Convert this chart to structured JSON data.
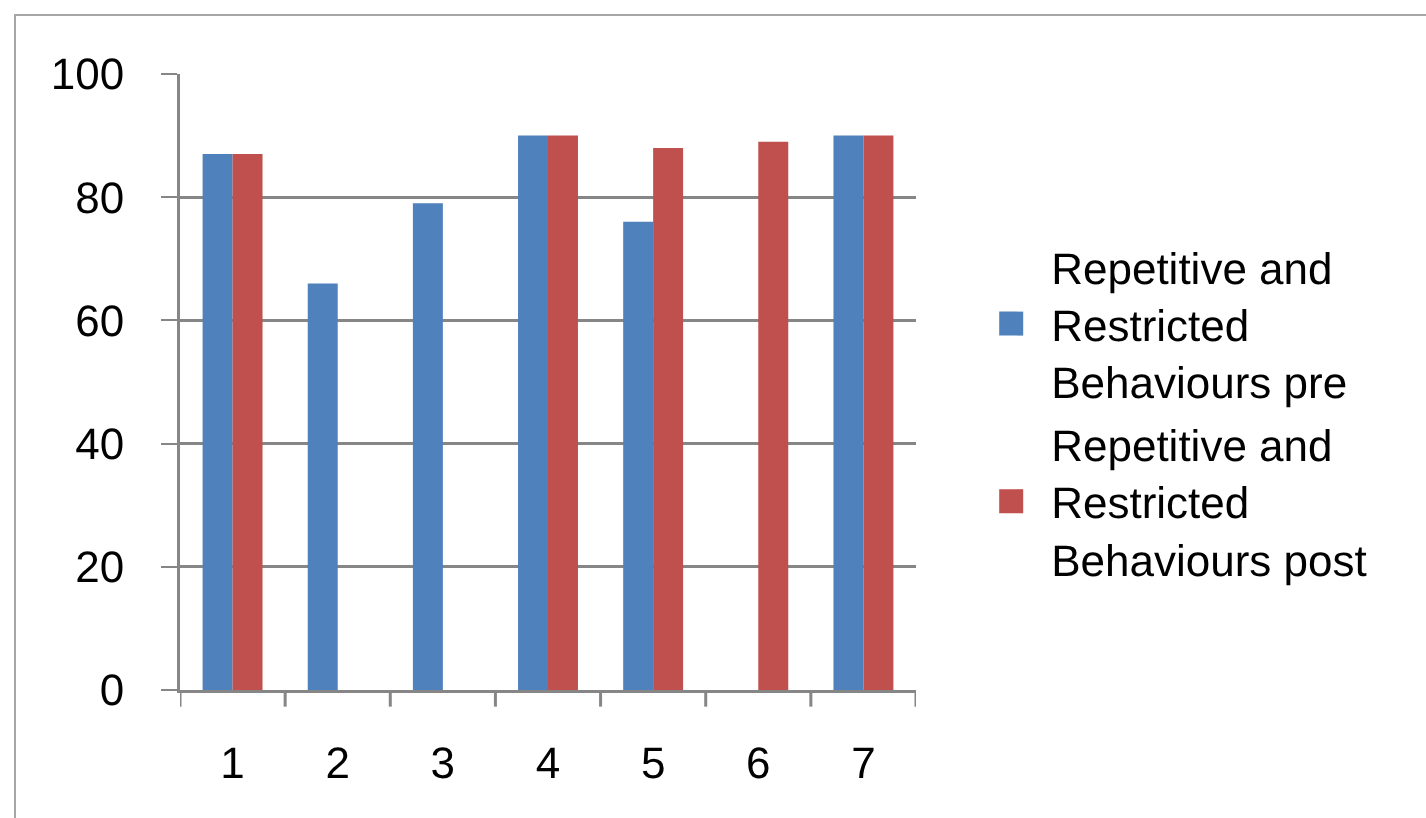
{
  "chart_data": {
    "type": "bar",
    "categories": [
      "1",
      "2",
      "3",
      "4",
      "5",
      "6",
      "7"
    ],
    "series": [
      {
        "name": "Repetitive and Restricted Behaviours pre",
        "color": "#4f81bd",
        "values": [
          87,
          66,
          79,
          90,
          76,
          null,
          90
        ]
      },
      {
        "name": "Repetitive and Restricted Behaviours post",
        "color": "#c0504d",
        "values": [
          87,
          null,
          null,
          90,
          88,
          89,
          90
        ]
      }
    ],
    "ylim": [
      0,
      100
    ],
    "yticks": [
      0,
      20,
      40,
      60,
      80,
      100
    ],
    "grid": "y",
    "legend": "right"
  }
}
